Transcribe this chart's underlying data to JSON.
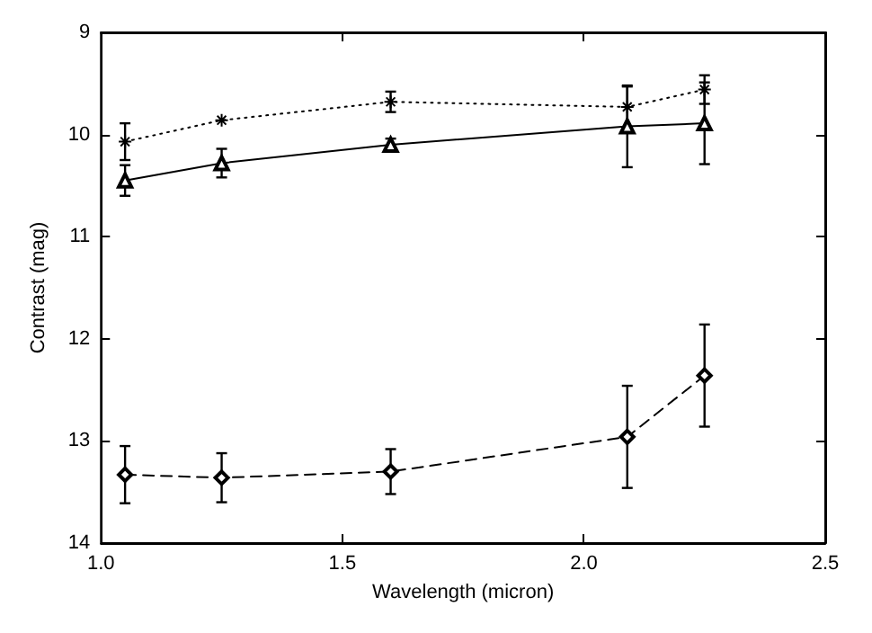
{
  "chart_data": {
    "type": "line",
    "xlabel": "Wavelength (micron)",
    "ylabel": "Contrast (mag)",
    "xlim": [
      1.0,
      2.5
    ],
    "xticks": [
      {
        "value": 1.0,
        "label": "1.0"
      },
      {
        "value": 1.5,
        "label": "1.5"
      },
      {
        "value": 2.0,
        "label": "2.0"
      },
      {
        "value": 2.5,
        "label": "2.5"
      }
    ],
    "ylim": [
      14,
      9
    ],
    "yticks": [
      9,
      10,
      11,
      12,
      13,
      14
    ],
    "grid": false,
    "x": [
      1.05,
      1.25,
      1.6,
      2.09,
      2.25
    ],
    "series": [
      {
        "color": "#000000",
        "marker": "cross",
        "line_style": "dotted",
        "values": [
          10.07,
          9.86,
          9.68,
          9.73,
          9.56
        ],
        "errors": [
          0.18,
          null,
          0.1,
          0.2,
          0.14
        ]
      },
      {
        "color": "#000000",
        "marker": "triangle",
        "line_style": "solid",
        "values": [
          10.45,
          10.28,
          10.1,
          9.92,
          9.89
        ],
        "errors": [
          0.15,
          0.14,
          0.06,
          0.4,
          0.4
        ]
      },
      {
        "color": "#000000",
        "marker": "diamond",
        "line_style": "dashed",
        "values": [
          13.33,
          13.36,
          13.3,
          12.96,
          12.36
        ],
        "errors": [
          0.28,
          0.24,
          0.22,
          0.5,
          0.5
        ]
      }
    ]
  }
}
